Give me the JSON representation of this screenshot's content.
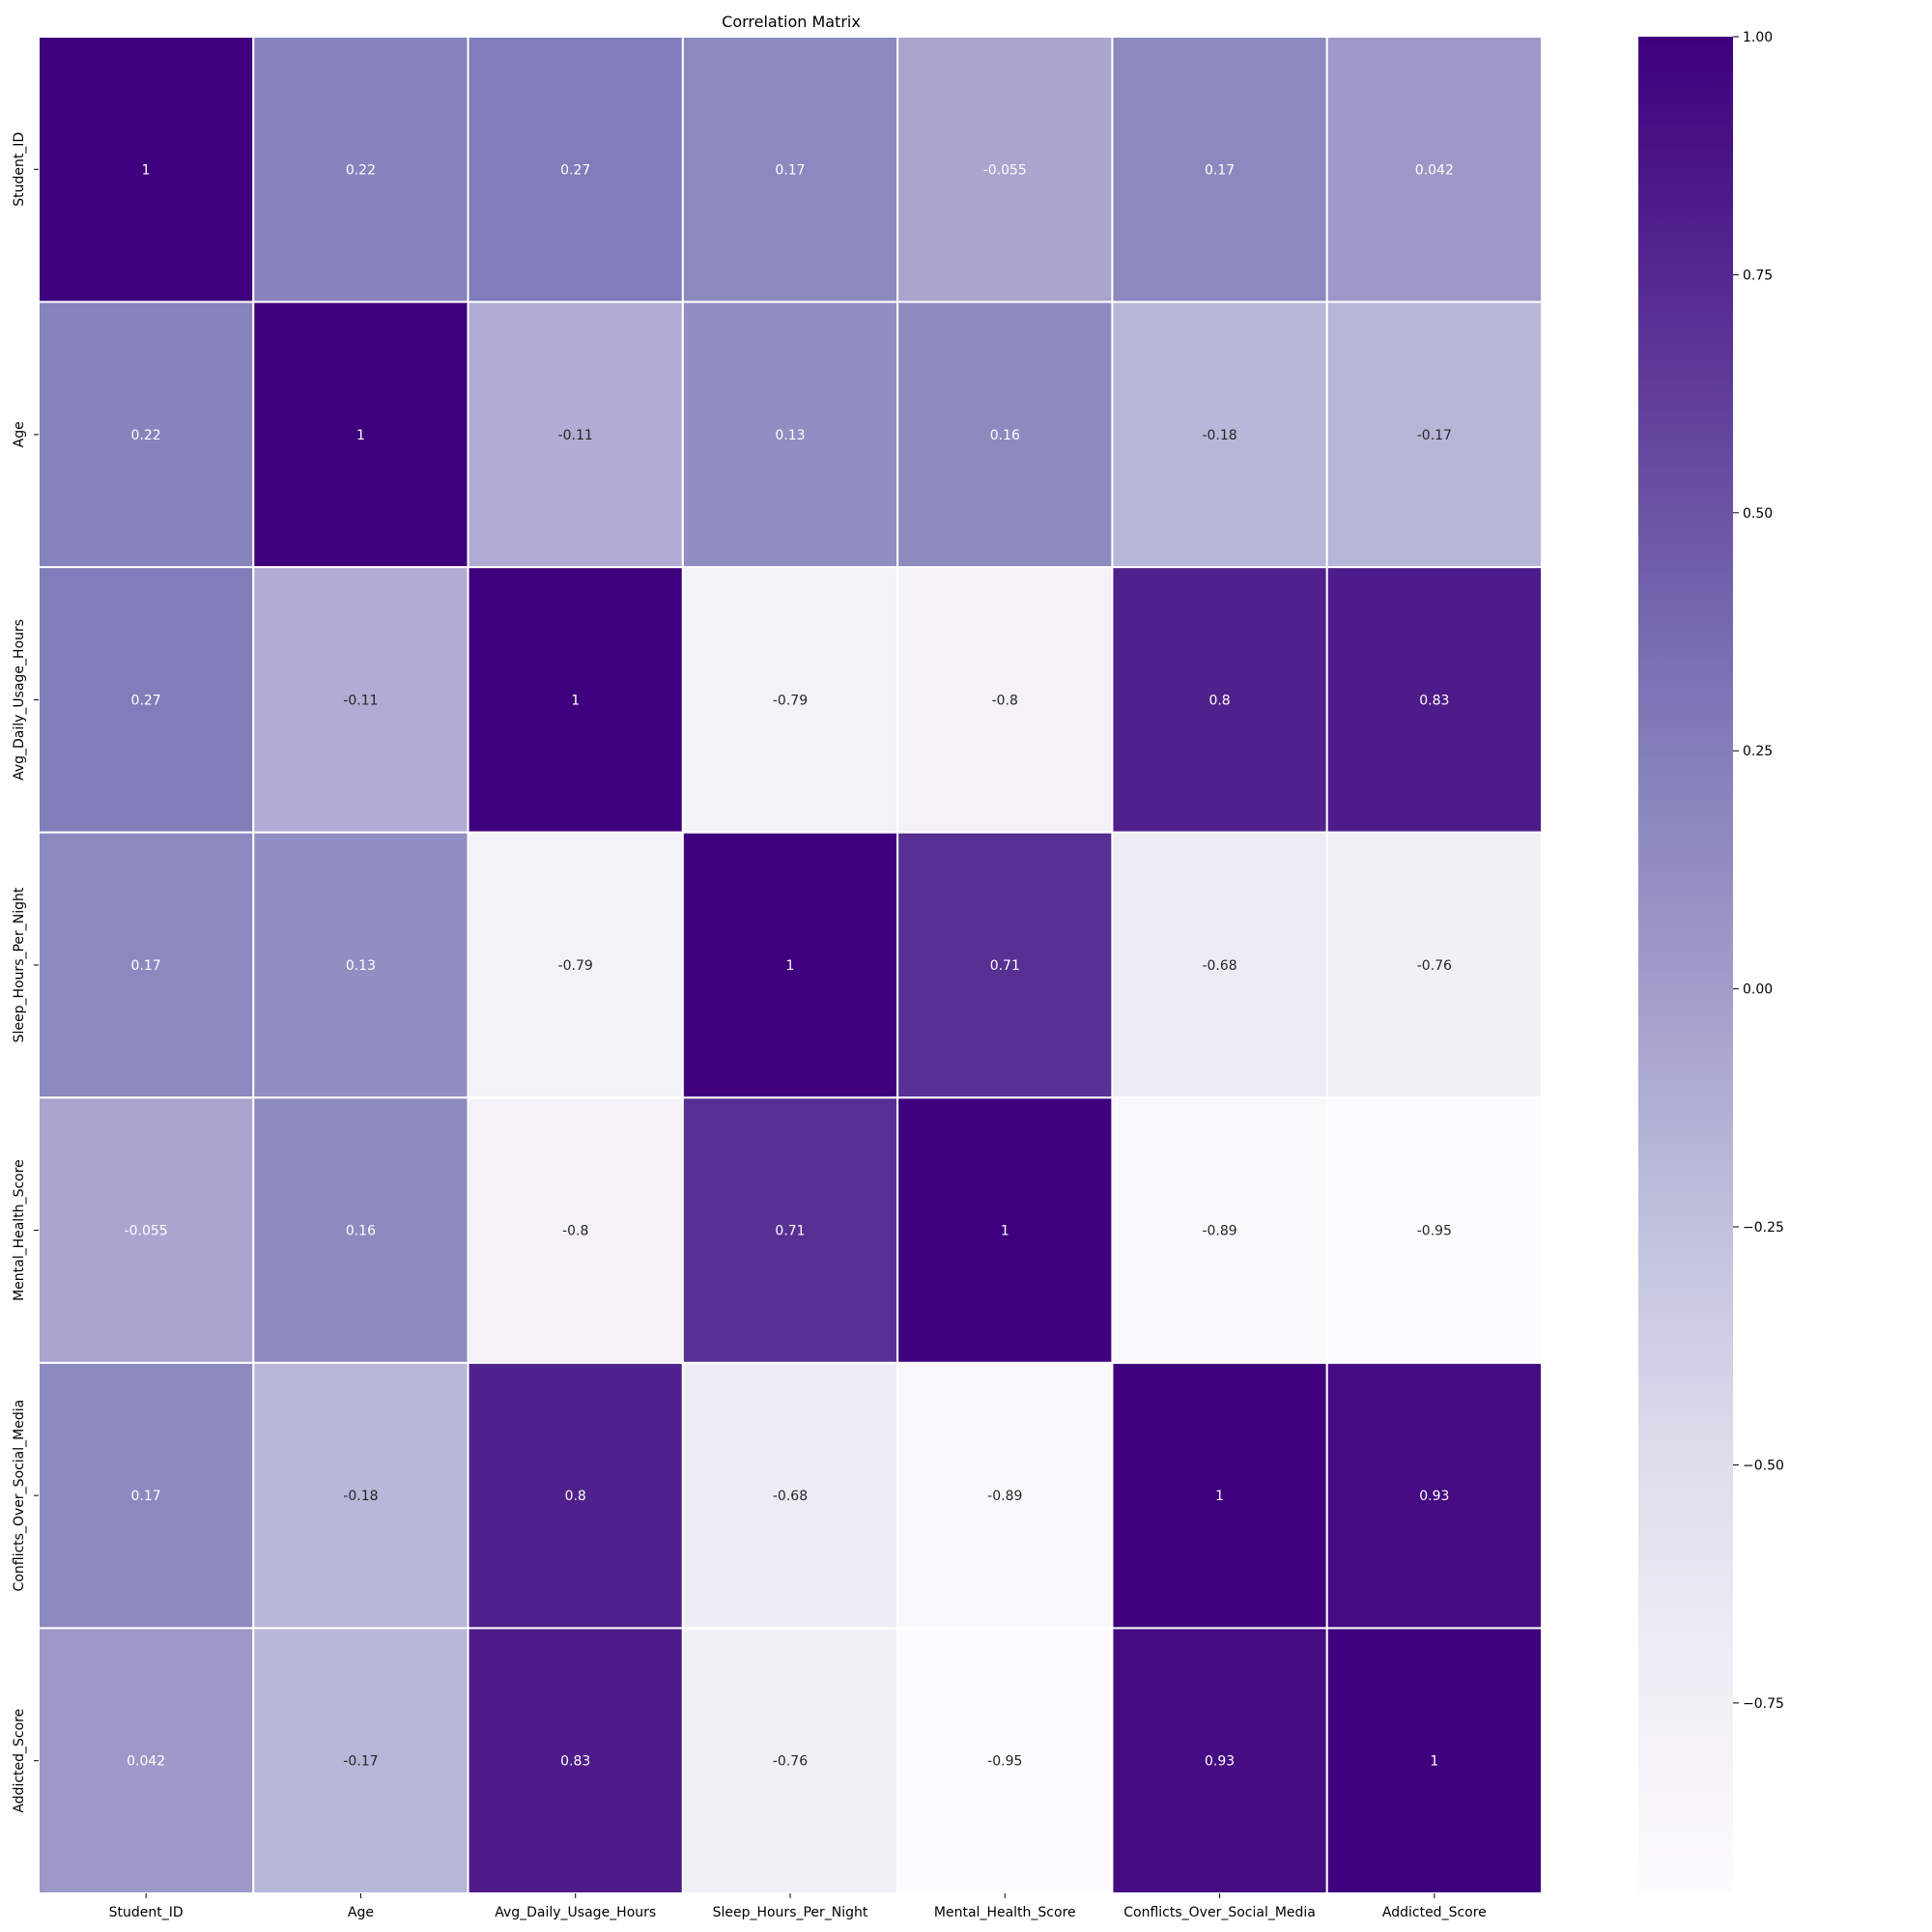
{
  "chart_data": {
    "type": "heatmap",
    "title": "Correlation Matrix",
    "xlabel": "",
    "ylabel": "",
    "labels": [
      "Student_ID",
      "Age",
      "Avg_Daily_Usage_Hours",
      "Sleep_Hours_Per_Night",
      "Mental_Health_Score",
      "Conflicts_Over_Social_Media",
      "Addicted_Score"
    ],
    "matrix": [
      [
        1,
        0.22,
        0.27,
        0.17,
        -0.055,
        0.17,
        0.042
      ],
      [
        0.22,
        1,
        -0.11,
        0.13,
        0.16,
        -0.18,
        -0.17
      ],
      [
        0.27,
        -0.11,
        1,
        -0.79,
        -0.8,
        0.8,
        0.83
      ],
      [
        0.17,
        0.13,
        -0.79,
        1,
        0.71,
        -0.68,
        -0.76
      ],
      [
        -0.055,
        0.16,
        -0.8,
        0.71,
        1,
        -0.89,
        -0.95
      ],
      [
        0.17,
        -0.18,
        0.8,
        -0.68,
        -0.89,
        1,
        0.93
      ],
      [
        0.042,
        -0.17,
        0.83,
        -0.76,
        -0.95,
        0.93,
        1
      ]
    ],
    "annotations": [
      [
        "1",
        "0.22",
        "0.27",
        "0.17",
        "-0.055",
        "0.17",
        "0.042"
      ],
      [
        "0.22",
        "1",
        "-0.11",
        "0.13",
        "0.16",
        "-0.18",
        "-0.17"
      ],
      [
        "0.27",
        "-0.11",
        "1",
        "-0.79",
        "-0.8",
        "0.8",
        "0.83"
      ],
      [
        "0.17",
        "0.13",
        "-0.79",
        "1",
        "0.71",
        "-0.68",
        "-0.76"
      ],
      [
        "-0.055",
        "0.16",
        "-0.8",
        "0.71",
        "1",
        "-0.89",
        "-0.95"
      ],
      [
        "0.17",
        "-0.18",
        "0.8",
        "-0.68",
        "-0.89",
        "1",
        "0.93"
      ],
      [
        "0.042",
        "-0.17",
        "0.83",
        "-0.76",
        "-0.95",
        "0.93",
        "1"
      ]
    ],
    "colormap": "Purples",
    "color_range": [
      -0.95,
      1
    ],
    "colorbar": {
      "ticks": [
        1,
        0.75,
        0.5,
        0.25,
        0,
        -0.25,
        -0.5,
        -0.75
      ],
      "tick_labels": [
        "1.00",
        "0.75",
        "0.50",
        "0.25",
        "0.00",
        "−0.25",
        "−0.50",
        "−0.75"
      ]
    },
    "grid": true,
    "legend": "colorbar-right"
  }
}
